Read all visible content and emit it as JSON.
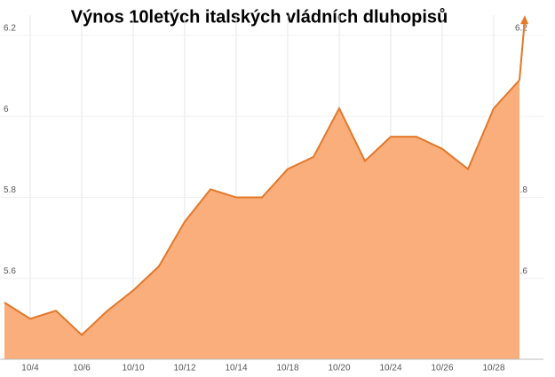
{
  "chart_data": {
    "type": "area",
    "title": "Výnos 10letých italských vládních dluhopisů",
    "categories": [
      null,
      "10/4",
      null,
      "10/6",
      null,
      "10/10",
      null,
      "10/12",
      null,
      "10/14",
      null,
      "10/18",
      null,
      "10/20",
      null,
      "10/24",
      null,
      "10/26",
      null,
      "10/28",
      null
    ],
    "values": [
      5.54,
      5.5,
      5.52,
      5.46,
      5.52,
      5.57,
      5.63,
      5.74,
      5.82,
      5.8,
      5.8,
      5.87,
      5.9,
      6.02,
      5.89,
      5.95,
      5.95,
      5.92,
      5.87,
      6.02,
      6.09
    ],
    "color": "#f9ae7c",
    "line_color": "#e2782a",
    "ylim": [
      5.4,
      6.25
    ],
    "yticks": [
      5.6,
      5.8,
      6,
      6.2
    ],
    "grid": true
  }
}
